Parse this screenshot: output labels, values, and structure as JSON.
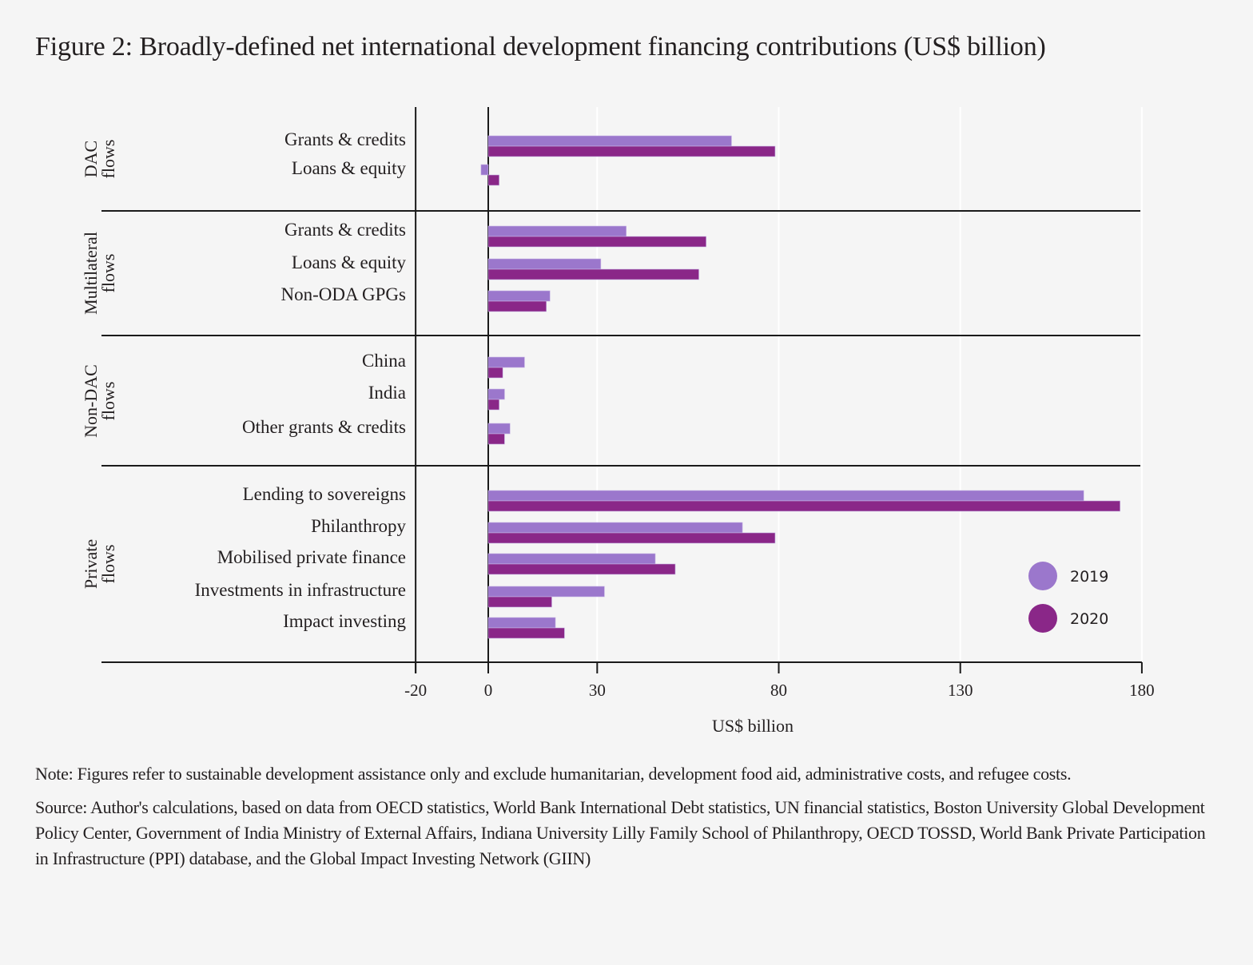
{
  "title": "Figure 2: Broadly-defined net international development financing contributions (US$ billion)",
  "chart_data": {
    "type": "bar",
    "orientation": "horizontal",
    "title": "Figure 2: Broadly-defined net international development financing contributions (US$ billion)",
    "xlabel": "US$ billion",
    "ylabel": "",
    "xlim": [
      -20,
      180
    ],
    "xticks": [
      -20,
      0,
      30,
      80,
      130,
      180
    ],
    "xtick_labels": [
      "-20",
      "0",
      "30",
      "80",
      "130",
      "180"
    ],
    "grid": "vertical at 30 and 80",
    "legend": {
      "placement": "bottom-right",
      "entries": [
        "2019",
        "2020"
      ]
    },
    "series_colors": {
      "2019": "#9b77cc",
      "2020": "#8a2788"
    },
    "groups": [
      {
        "name": "DAC flows",
        "label_lines": [
          "DAC",
          "flows"
        ],
        "categories": [
          {
            "label": "Grants & credits",
            "v2019": 67,
            "v2020": 79
          },
          {
            "label": "Loans & equity",
            "v2019": -2,
            "v2020": 3
          }
        ]
      },
      {
        "name": "Multilateral flows",
        "label_lines": [
          "Multilateral",
          "flows"
        ],
        "categories": [
          {
            "label": "Grants & credits",
            "v2019": 38,
            "v2020": 60
          },
          {
            "label": "Loans & equity",
            "v2019": 31,
            "v2020": 58
          },
          {
            "label": "Non-ODA GPGs",
            "v2019": 17,
            "v2020": 16
          }
        ]
      },
      {
        "name": "Non-DAC flows",
        "label_lines": [
          "Non-DAC",
          "flows"
        ],
        "categories": [
          {
            "label": "China",
            "v2019": 10,
            "v2020": 4
          },
          {
            "label": "India",
            "v2019": 4.5,
            "v2020": 3
          },
          {
            "label": "Other grants & credits",
            "v2019": 6,
            "v2020": 4.5
          }
        ]
      },
      {
        "name": "Private flows",
        "label_lines": [
          "Private",
          "flows"
        ],
        "categories": [
          {
            "label": "Lending to sovereigns",
            "v2019": 164,
            "v2020": 174
          },
          {
            "label": "Philanthropy",
            "v2019": 70,
            "v2020": 79
          },
          {
            "label": "Mobilised private finance",
            "v2019": 46,
            "v2020": 51.5
          },
          {
            "label": "Investments in infrastructure",
            "v2019": 32,
            "v2020": 17.5
          },
          {
            "label": "Impact investing",
            "v2019": 18.5,
            "v2020": 21
          }
        ]
      }
    ]
  },
  "notes": {
    "note": "Note: Figures refer to sustainable development assistance only and exclude humanitarian, development food aid, administrative costs, and refugee costs.",
    "source": "Source: Author's calculations, based on data from OECD statistics, World Bank International Debt statistics, UN financial statistics, Boston University Global Development Policy Center, Government of India Ministry of External Affairs, Indiana University Lilly Family School of Philanthropy, OECD TOSSD, World Bank Private Participation in Infrastructure (PPI) database, and the Global Impact Investing Network (GIIN)"
  }
}
